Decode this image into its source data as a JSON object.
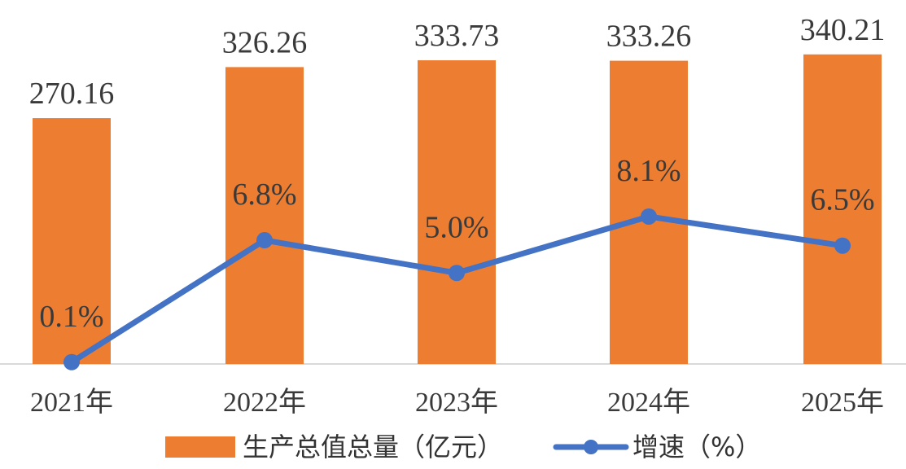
{
  "chart_data": {
    "type": "bar",
    "categories": [
      "2021年",
      "2022年",
      "2023年",
      "2024年",
      "2025年"
    ],
    "series": [
      {
        "name": "生产总值总量（亿元）",
        "type": "bar",
        "axis": "left",
        "values": [
          270.16,
          326.26,
          333.73,
          333.26,
          340.21
        ],
        "labels": [
          "270.16",
          "326.26",
          "333.73",
          "333.26",
          "340.21"
        ],
        "color": "#ED7D31"
      },
      {
        "name": "增速（%）",
        "type": "line",
        "axis": "right",
        "values": [
          0.1,
          6.8,
          5.0,
          8.1,
          6.5
        ],
        "labels": [
          "0.1%",
          "6.8%",
          "5.0%",
          "8.1%",
          "6.5%"
        ],
        "color": "#4472C4"
      }
    ],
    "ylim_left": [
      0,
      400
    ],
    "ylim_right": [
      0,
      20
    ],
    "grid": false,
    "legend": "bottom",
    "title": "",
    "xlabel": "",
    "ylabel": ""
  }
}
